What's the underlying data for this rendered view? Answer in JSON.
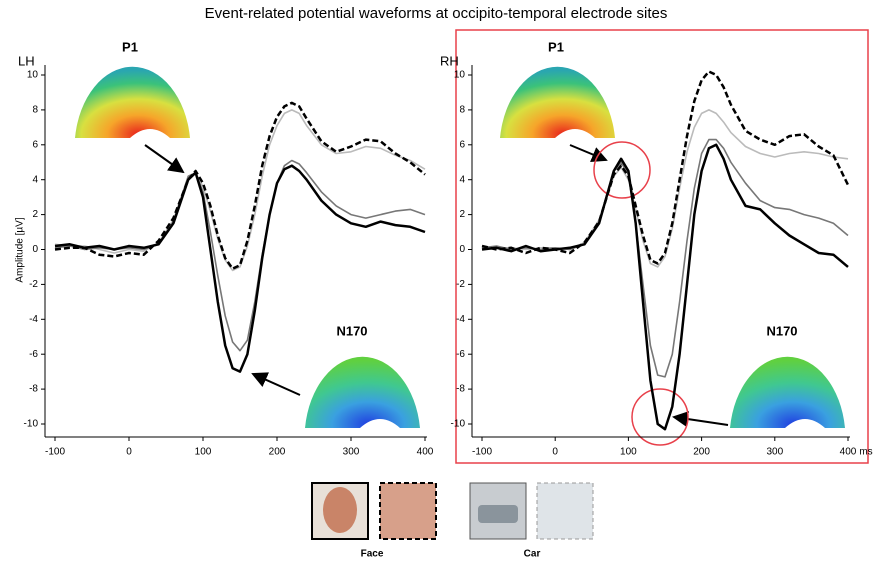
{
  "title": "Event-related potential waveforms at occipito-temporal electrode sites",
  "legend_labels": [
    "Face",
    "Car"
  ],
  "chart_data": [
    {
      "type": "line",
      "label": "LH",
      "ylabel": "Amplitude [µV]",
      "annotations": [
        "P1",
        "N170"
      ],
      "x": [
        -100,
        -80,
        -60,
        -40,
        -20,
        0,
        20,
        40,
        60,
        80,
        90,
        100,
        110,
        120,
        130,
        140,
        150,
        160,
        170,
        180,
        190,
        200,
        210,
        220,
        230,
        240,
        260,
        280,
        300,
        320,
        340,
        360,
        380,
        400
      ],
      "xlim": [
        -100,
        400
      ],
      "ylim": [
        -10,
        11
      ],
      "xticks": [
        -100,
        0,
        100,
        200,
        300,
        400
      ],
      "yticks": [
        -10,
        -8,
        -6,
        -4,
        -2,
        0,
        2,
        4,
        6,
        8,
        10
      ],
      "series": [
        {
          "color": "#000000",
          "dash": false,
          "width": 2.5,
          "values": [
            0.2,
            0.3,
            0.1,
            0.2,
            0,
            0.2,
            0.1,
            0.3,
            1.5,
            4,
            4.4,
            3,
            0,
            -3,
            -5.5,
            -6.8,
            -7,
            -6,
            -3.5,
            -0.5,
            2,
            3.8,
            4.6,
            4.8,
            4.5,
            4,
            2.8,
            2,
            1.5,
            1.3,
            1.6,
            1.4,
            1.3,
            1
          ]
        },
        {
          "color": "#000000",
          "dash": true,
          "width": 2.5,
          "values": [
            0,
            0.1,
            0.1,
            -0.3,
            -0.4,
            -0.2,
            -0.3,
            0.5,
            1.8,
            4,
            4.5,
            3.8,
            2.5,
            0.8,
            -0.5,
            -1.1,
            -0.9,
            0.5,
            2.5,
            4.8,
            6.5,
            7.6,
            8.2,
            8.4,
            8.2,
            7.5,
            6.2,
            5.6,
            5.9,
            6.3,
            6.2,
            5.5,
            5,
            4.3
          ]
        },
        {
          "color": "#777777",
          "dash": false,
          "width": 1.6,
          "values": [
            0.1,
            0.2,
            0,
            0.1,
            0,
            0.1,
            0,
            0.3,
            1.6,
            4.2,
            4.4,
            3.3,
            1,
            -1.5,
            -3.8,
            -5.3,
            -5.8,
            -5.2,
            -3,
            -0.3,
            2,
            3.8,
            4.8,
            5.1,
            4.9,
            4.4,
            3.3,
            2.5,
            2,
            1.8,
            2,
            2.2,
            2.3,
            2
          ]
        },
        {
          "color": "#bbbbbb",
          "dash": false,
          "width": 1.6,
          "values": [
            0.3,
            0.2,
            0.2,
            0,
            -0.2,
            0,
            -0.1,
            0.4,
            1.7,
            4.1,
            4.4,
            3.6,
            2.2,
            0.6,
            -0.6,
            -1.2,
            -1,
            0.2,
            2,
            4.2,
            6,
            7.1,
            7.8,
            8,
            7.8,
            7.1,
            6,
            5.5,
            5.6,
            5.9,
            5.8,
            5.4,
            5.1,
            4.6
          ]
        }
      ]
    },
    {
      "type": "line",
      "label": "RH",
      "xlabel": "ms",
      "annotations": [
        "P1",
        "N170"
      ],
      "x": [
        -100,
        -80,
        -60,
        -40,
        -20,
        0,
        20,
        40,
        60,
        80,
        90,
        100,
        110,
        120,
        130,
        140,
        150,
        160,
        170,
        180,
        190,
        200,
        210,
        220,
        230,
        240,
        260,
        280,
        300,
        320,
        340,
        360,
        380,
        400
      ],
      "xlim": [
        -100,
        400
      ],
      "ylim": [
        -10,
        11
      ],
      "xticks": [
        -100,
        0,
        100,
        200,
        300,
        400
      ],
      "yticks": [
        -10,
        -8,
        -6,
        -4,
        -2,
        0,
        2,
        4,
        6,
        8,
        10
      ],
      "series": [
        {
          "color": "#000000",
          "dash": false,
          "width": 2.5,
          "values": [
            0,
            0.1,
            -0.1,
            0.2,
            -0.1,
            0,
            0.1,
            0.3,
            1.5,
            4.5,
            5.2,
            4.5,
            1.5,
            -3,
            -7.5,
            -10,
            -10.3,
            -9,
            -6,
            -2,
            2,
            4.5,
            5.8,
            6,
            5.2,
            4,
            2.5,
            2.3,
            1.5,
            0.8,
            0.3,
            -0.2,
            -0.3,
            -1
          ]
        },
        {
          "color": "#000000",
          "dash": true,
          "width": 2.5,
          "values": [
            0.2,
            0,
            0.1,
            -0.2,
            0.1,
            0,
            -0.2,
            0.4,
            1.6,
            4.3,
            4.8,
            4.2,
            2.5,
            0.8,
            -0.6,
            -0.8,
            -0.2,
            1.5,
            4,
            6.5,
            8.5,
            9.7,
            10.2,
            10,
            9.3,
            8.3,
            6.8,
            6.3,
            6,
            6.5,
            6.6,
            5.9,
            5.4,
            3.7
          ]
        },
        {
          "color": "#777777",
          "dash": false,
          "width": 1.6,
          "values": [
            0.1,
            0.2,
            0,
            0.1,
            0,
            0.1,
            0,
            0.3,
            1.6,
            4.5,
            5,
            4.3,
            1.5,
            -2,
            -5.5,
            -7.2,
            -7.3,
            -6,
            -3,
            0.5,
            3.5,
            5.5,
            6.3,
            6.3,
            5.8,
            5,
            3.8,
            2.8,
            2.4,
            2.3,
            2,
            1.8,
            1.5,
            0.8
          ]
        },
        {
          "color": "#bbbbbb",
          "dash": false,
          "width": 1.6,
          "values": [
            0.2,
            0.1,
            0.1,
            0,
            0.1,
            0.1,
            0,
            0.4,
            1.7,
            4.2,
            4.7,
            4,
            2.3,
            0.5,
            -0.8,
            -1,
            -0.4,
            1.2,
            3.5,
            5.6,
            7,
            7.8,
            8,
            7.8,
            7.3,
            6.7,
            5.9,
            5.5,
            5.3,
            5.5,
            5.6,
            5.5,
            5.3,
            5.2
          ]
        }
      ]
    }
  ]
}
